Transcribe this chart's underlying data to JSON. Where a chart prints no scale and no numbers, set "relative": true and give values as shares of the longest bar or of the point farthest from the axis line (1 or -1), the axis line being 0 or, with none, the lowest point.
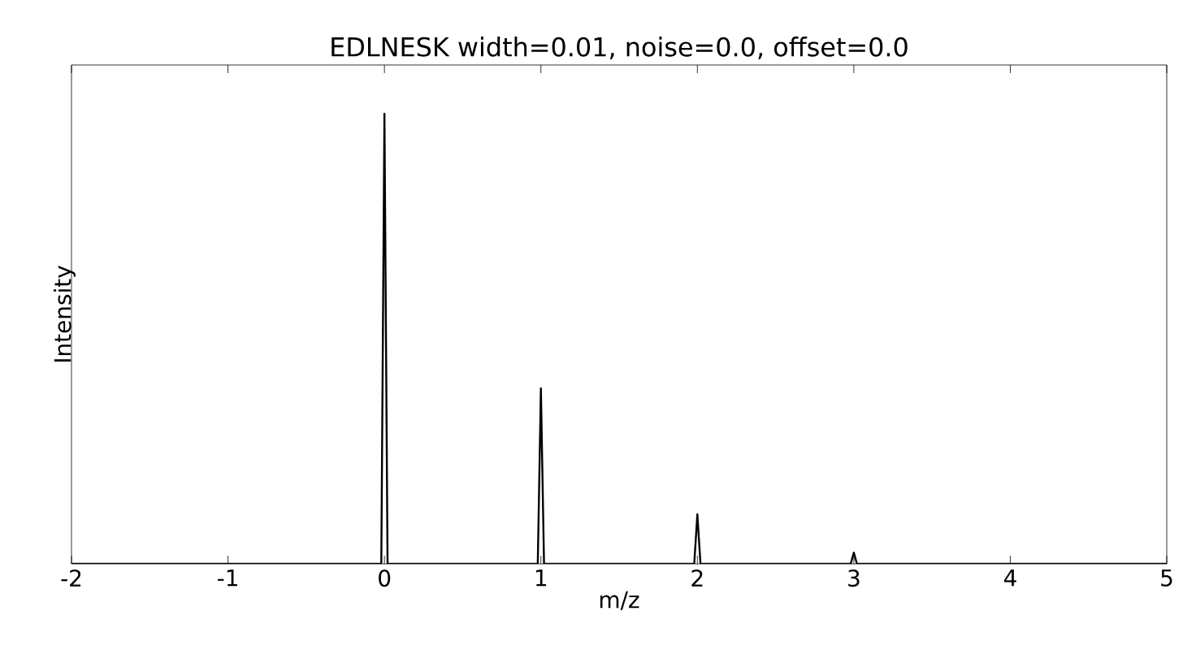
{
  "chart_data": {
    "type": "line",
    "title": "EDLNESK width=0.01, noise=0.0, offset=0.0",
    "xlabel": "m/z",
    "ylabel": "Intensity",
    "relative": true,
    "x": [
      -2,
      -0.02,
      0,
      0.02,
      0.98,
      1,
      1.02,
      1.98,
      2,
      2.02,
      2.98,
      3,
      3.02,
      5
    ],
    "series": [
      {
        "color": "#000000",
        "values": [
          0,
          0,
          1,
          0,
          0,
          0.39,
          0,
          0,
          0.11,
          0,
          0,
          0.025,
          0,
          0
        ]
      }
    ],
    "xlim": [
      -2,
      5
    ],
    "xticks": [
      -2,
      -1,
      0,
      1,
      2,
      3,
      4,
      5
    ],
    "tick_labels": "x",
    "grid": false,
    "marker": "none",
    "line_style": "solid"
  }
}
